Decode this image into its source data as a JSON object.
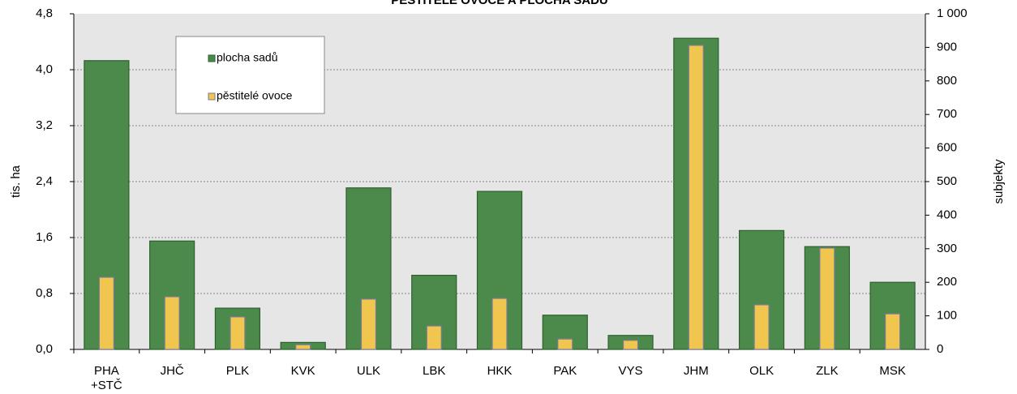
{
  "chart_data": {
    "type": "bar",
    "title": "PĚSTITELÉ OVOCE A PLOCHA SADŮ",
    "y_label": "tis. ha",
    "y2_label": "subjekty",
    "categories": [
      "PHA\n+STČ",
      "JHČ",
      "PLK",
      "KVK",
      "ULK",
      "LBK",
      "HKK",
      "PAK",
      "VYS",
      "JHM",
      "OLK",
      "ZLK",
      "MSK"
    ],
    "series": [
      {
        "name": "plocha sadů",
        "color": "#4c8a4c",
        "values": [
          4.13,
          1.55,
          0.59,
          0.1,
          2.31,
          1.06,
          2.26,
          0.49,
          0.2,
          4.45,
          1.7,
          1.47,
          0.96
        ]
      },
      {
        "name": "pěstitelé ovoce",
        "color": "#f0c64e",
        "axis": "y2",
        "values": [
          215,
          157,
          97,
          14,
          150,
          70,
          152,
          31,
          27,
          906,
          133,
          302,
          106
        ]
      }
    ],
    "ylim": [
      0,
      4.8
    ],
    "yticks": [
      {
        "value": 0,
        "label": "0,0"
      },
      {
        "value": 0.8,
        "label": "0,8"
      },
      {
        "value": 1.6,
        "label": "1,6"
      },
      {
        "value": 2.4,
        "label": "2,4"
      },
      {
        "value": 3.2,
        "label": "3,2"
      },
      {
        "value": 4.0,
        "label": "4,0"
      },
      {
        "value": 4.8,
        "label": "4,8"
      }
    ],
    "y2lim": [
      0,
      1000
    ],
    "y2ticks": [
      0,
      100,
      200,
      300,
      400,
      500,
      600,
      700,
      800,
      900,
      {
        "value": 1000,
        "label": "1 000"
      }
    ],
    "grid": true,
    "legend": "upper left"
  }
}
